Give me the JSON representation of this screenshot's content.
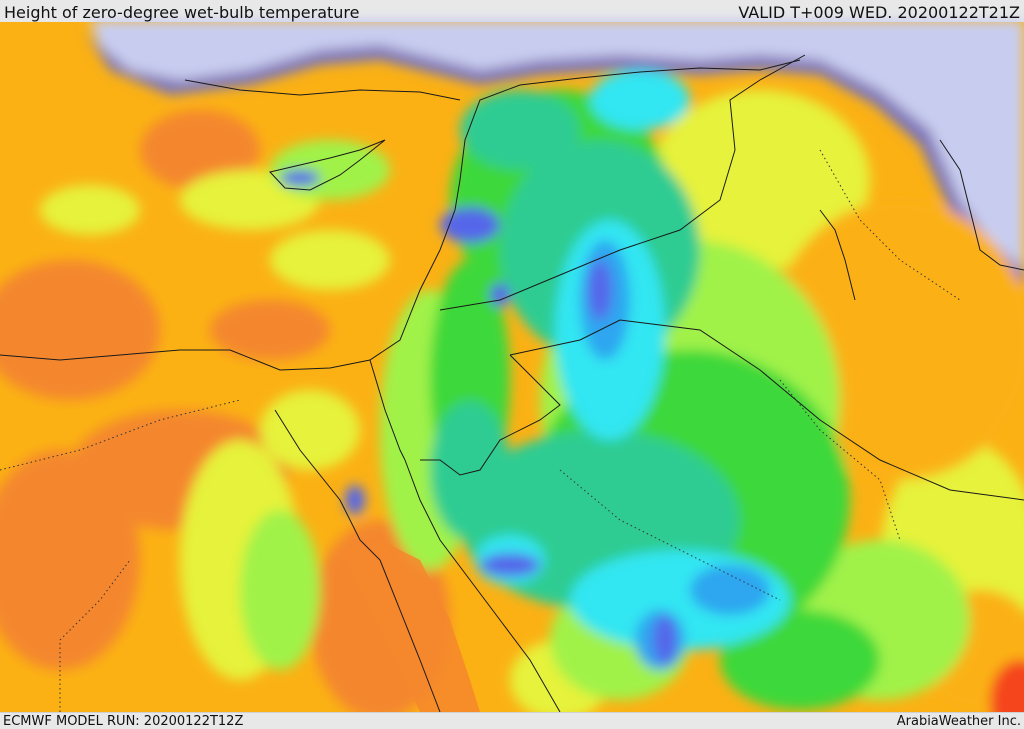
{
  "header": {
    "title": "Height of zero-degree wet-bulb temperature",
    "valid": "VALID T+009 WED. 20200122T21Z"
  },
  "footer": {
    "model_run": "ECMWF MODEL RUN: 20200122T12Z",
    "credit": "ArabiaWeather Inc."
  },
  "palette": {
    "sea": "#c8cdf0",
    "deep_orange": "#f4872d",
    "orange": "#fbb114",
    "yellow": "#e6f23a",
    "light_green": "#a0f24a",
    "green": "#3ed83b",
    "teal": "#2dcc92",
    "cyan": "#33e6f2",
    "blue": "#2fa6f0",
    "indigo": "#5566ea",
    "red": "#f5451d",
    "border_line": "#1a1a1a"
  }
}
